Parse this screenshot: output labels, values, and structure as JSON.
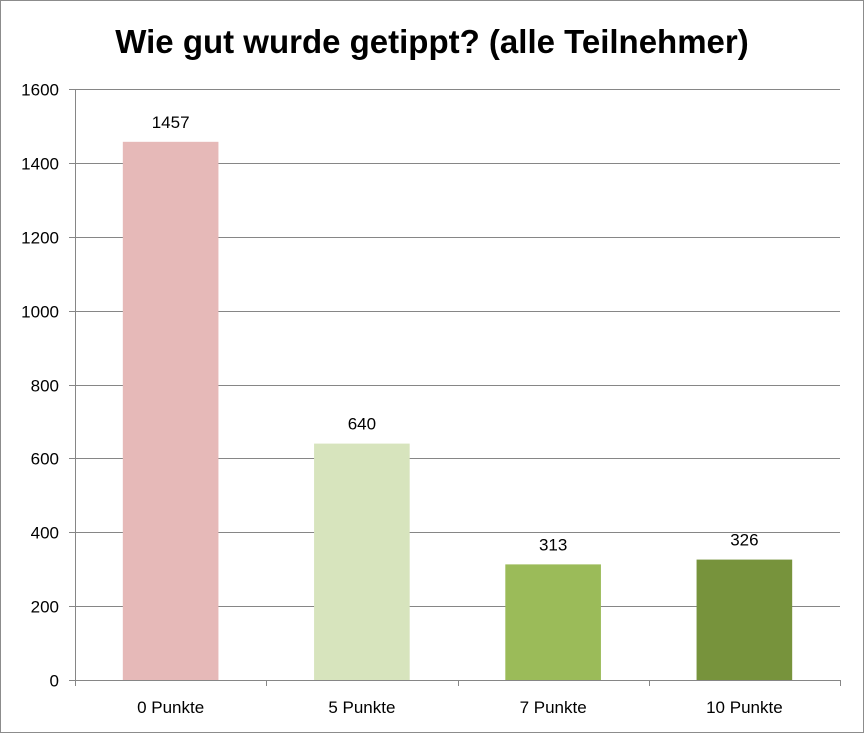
{
  "chart_data": {
    "type": "bar",
    "title": "Wie gut wurde getippt? (alle Teilnehmer)",
    "xlabel": "",
    "ylabel": "",
    "categories": [
      "0 Punkte",
      "5 Punkte",
      "7 Punkte",
      "10 Punkte"
    ],
    "values": [
      1457,
      640,
      313,
      326
    ],
    "data_labels": [
      "1457",
      "640",
      "313",
      "326"
    ],
    "colors": [
      "#e6b9b8",
      "#d7e4bd",
      "#9bbb59",
      "#77933c"
    ],
    "ylim": [
      0,
      1600
    ],
    "yticks": [
      0,
      200,
      400,
      600,
      800,
      1000,
      1200,
      1400,
      1600
    ],
    "ytick_labels": [
      "0",
      "200",
      "400",
      "600",
      "800",
      "1000",
      "1200",
      "1400",
      "1600"
    ],
    "grid": true,
    "legend": "none"
  }
}
